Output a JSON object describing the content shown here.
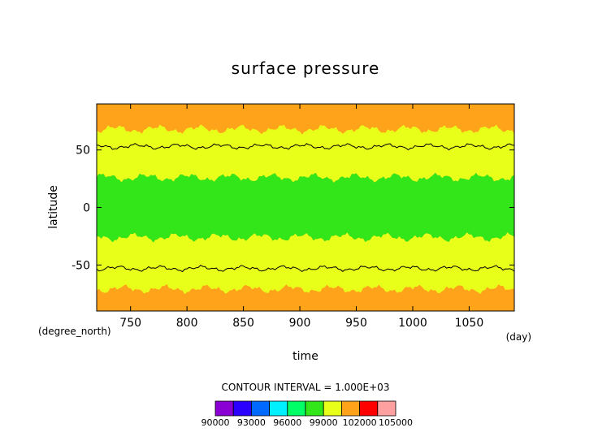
{
  "chart_data": {
    "type": "heatmap",
    "title": "surface pressure",
    "xlabel": "time",
    "ylabel": "latitude",
    "x_unit": "(day)",
    "y_unit": "(degree_north)",
    "xlim": [
      720,
      1090
    ],
    "ylim": [
      -90,
      90
    ],
    "x_ticks": [
      750,
      800,
      850,
      900,
      950,
      1000,
      1050
    ],
    "y_ticks": [
      -50,
      0,
      50
    ],
    "contour_interval_text": "CONTOUR INTERVAL = 1.000E+03",
    "colorbar": {
      "levels": [
        90000,
        91500,
        93000,
        94500,
        96000,
        97500,
        99000,
        100500,
        102000,
        103500,
        105000
      ],
      "tick_labels": [
        "90000",
        "93000",
        "96000",
        "99000",
        "102000",
        "105000"
      ],
      "colors": [
        "#8a00d4",
        "#2b00ff",
        "#0069ff",
        "#00f0ff",
        "#00ff66",
        "#33e61a",
        "#e8ff1a",
        "#ffa41a",
        "#ff0000",
        "#ffa0a0"
      ]
    },
    "bands": [
      {
        "lat_from": 68,
        "lat_to": 90,
        "color": "#ffa41a"
      },
      {
        "lat_from": 26,
        "lat_to": 68,
        "color": "#e8ff1a"
      },
      {
        "lat_from": -26,
        "lat_to": 26,
        "color": "#33e61a"
      },
      {
        "lat_from": -71,
        "lat_to": -26,
        "color": "#e8ff1a"
      },
      {
        "lat_from": -90,
        "lat_to": -71,
        "color": "#ffa41a"
      }
    ],
    "contour_lines": [
      {
        "name": "north-101500",
        "lat": 53
      },
      {
        "name": "south-101500",
        "lat": -53
      }
    ],
    "grid": false
  }
}
